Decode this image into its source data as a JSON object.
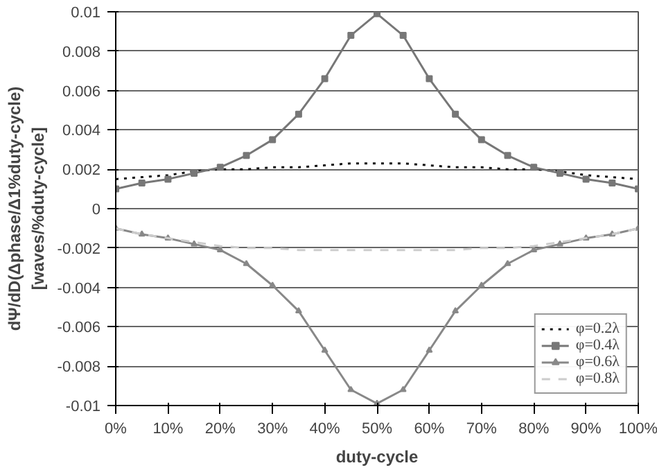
{
  "chart_data": {
    "type": "line",
    "xlabel": "duty-cycle",
    "ylabel": "dΨ/dD(Δphase/Δ1%duty-cycle)\n[waves/%duty-cycle]",
    "x": [
      0,
      5,
      10,
      15,
      20,
      25,
      30,
      35,
      40,
      45,
      50,
      55,
      60,
      65,
      70,
      75,
      80,
      85,
      90,
      95,
      100
    ],
    "series": [
      {
        "name": "φ=0.2λ",
        "color": "#111111",
        "line_style": "dotted",
        "marker": "none",
        "values": [
          0.0015,
          0.0016,
          0.0017,
          0.0019,
          0.002,
          0.002,
          0.0021,
          0.0021,
          0.0022,
          0.0023,
          0.0023,
          0.0023,
          0.0022,
          0.0021,
          0.0021,
          0.002,
          0.002,
          0.0019,
          0.0017,
          0.0016,
          0.0015
        ]
      },
      {
        "name": "φ=0.4λ",
        "color": "#777777",
        "line_style": "solid",
        "marker": "square",
        "values": [
          0.001,
          0.0013,
          0.0015,
          0.0018,
          0.0021,
          0.0027,
          0.0035,
          0.0048,
          0.0066,
          0.0088,
          0.0099,
          0.0088,
          0.0066,
          0.0048,
          0.0035,
          0.0027,
          0.0021,
          0.0018,
          0.0015,
          0.0013,
          0.001
        ]
      },
      {
        "name": "φ=0.6λ",
        "color": "#888888",
        "line_style": "solid",
        "marker": "triangle",
        "values": [
          -0.001,
          -0.0013,
          -0.0015,
          -0.0018,
          -0.0021,
          -0.0028,
          -0.0039,
          -0.0052,
          -0.0072,
          -0.0092,
          -0.0099,
          -0.0092,
          -0.0072,
          -0.0052,
          -0.0039,
          -0.0028,
          -0.0021,
          -0.0018,
          -0.0015,
          -0.0013,
          -0.001
        ]
      },
      {
        "name": "φ=0.8λ",
        "color": "#cccccc",
        "line_style": "dashed",
        "marker": "none",
        "values": [
          -0.001,
          -0.0013,
          -0.0015,
          -0.0017,
          -0.0019,
          -0.002,
          -0.002,
          -0.0021,
          -0.0021,
          -0.0021,
          -0.0021,
          -0.0021,
          -0.0021,
          -0.0021,
          -0.002,
          -0.002,
          -0.0019,
          -0.0017,
          -0.0015,
          -0.0013,
          -0.001
        ]
      }
    ],
    "xlim": [
      0,
      100
    ],
    "xticks": [
      {
        "value": 0,
        "label": "0%"
      },
      {
        "value": 10,
        "label": "10%"
      },
      {
        "value": 20,
        "label": "20%"
      },
      {
        "value": 30,
        "label": "30%"
      },
      {
        "value": 40,
        "label": "40%"
      },
      {
        "value": 50,
        "label": "50%"
      },
      {
        "value": 60,
        "label": "60%"
      },
      {
        "value": 70,
        "label": "70%"
      },
      {
        "value": 80,
        "label": "80%"
      },
      {
        "value": 90,
        "label": "90%"
      },
      {
        "value": 100,
        "label": "100%"
      }
    ],
    "ylim": [
      -0.01,
      0.01
    ],
    "yticks": [
      -0.01,
      -0.008,
      -0.006,
      -0.004,
      -0.002,
      0,
      0.002,
      0.004,
      0.006,
      0.008,
      0.01
    ],
    "grid": "y",
    "legend": "bottom right"
  }
}
